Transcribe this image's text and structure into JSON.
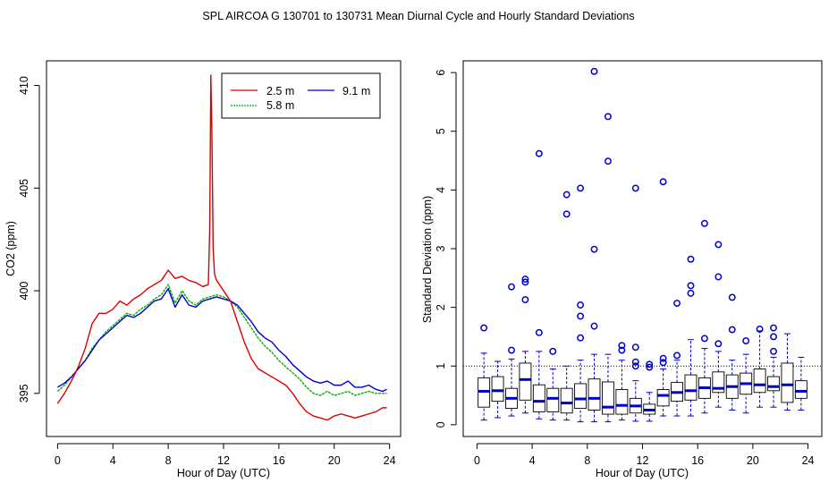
{
  "title": "SPL   AIRCOA G   130701 to 130731   Mean Diurnal Cycle and Hourly Standard Deviations",
  "colors": {
    "s25": "#dd0000",
    "s58": "#00b000",
    "s91": "#0000cc",
    "box": "#0000cc",
    "ref": "#000000"
  },
  "chart_data": [
    {
      "type": "line",
      "xlabel": "Hour of Day (UTC)",
      "ylabel": "CO2 (ppm)",
      "xlim": [
        -0.8,
        24.8
      ],
      "ylim": [
        392.9,
        411.2
      ],
      "xticks": [
        0,
        4,
        8,
        12,
        16,
        20,
        24
      ],
      "yticks": [
        395,
        400,
        405,
        410
      ],
      "xtick_labels": [
        "0",
        "4",
        "8",
        "12",
        "16",
        "20",
        "24"
      ],
      "ytick_labels": [
        "395",
        "400",
        "405",
        "410"
      ],
      "legend": {
        "position": "top-right",
        "entries": [
          "2.5 m",
          "9.1 m",
          "5.8 m"
        ]
      },
      "series": [
        {
          "name": "2.5 m",
          "color": "#dd0000",
          "x": [
            0,
            0.5,
            1,
            1.5,
            2,
            2.5,
            3,
            3.5,
            4,
            4.5,
            5,
            5.5,
            6,
            6.5,
            7,
            7.5,
            8,
            8.5,
            9,
            9.5,
            10,
            10.5,
            10.9,
            11.0,
            11.08,
            11.15,
            11.25,
            11.35,
            11.5,
            12,
            12.5,
            13,
            13.5,
            14,
            14.5,
            15,
            15.5,
            16,
            16.5,
            17,
            17.5,
            18,
            18.5,
            19,
            19.5,
            20,
            20.5,
            21,
            21.5,
            22,
            22.5,
            23,
            23.5,
            23.8
          ],
          "y": [
            394.5,
            395.0,
            395.6,
            396.3,
            397.2,
            398.4,
            398.9,
            398.9,
            399.1,
            399.5,
            399.3,
            399.6,
            399.8,
            400.1,
            400.3,
            400.5,
            401.0,
            400.6,
            400.7,
            400.5,
            400.4,
            400.2,
            400.3,
            403.0,
            410.5,
            408.0,
            402.0,
            400.8,
            400.5,
            400.0,
            399.5,
            398.5,
            397.5,
            396.7,
            396.2,
            396.0,
            395.8,
            395.6,
            395.4,
            395.0,
            394.5,
            394.1,
            393.9,
            393.8,
            393.7,
            393.9,
            394.0,
            393.9,
            393.8,
            393.9,
            394.0,
            394.1,
            394.3,
            394.3
          ]
        },
        {
          "name": "5.8 m",
          "color": "#00b000",
          "x": [
            0,
            0.5,
            1,
            1.5,
            2,
            2.5,
            3,
            3.5,
            4,
            4.5,
            5,
            5.5,
            6,
            6.5,
            7,
            7.5,
            8,
            8.5,
            9,
            9.5,
            10,
            10.5,
            11,
            11.5,
            12,
            12.5,
            13,
            13.5,
            14,
            14.5,
            15,
            15.5,
            16,
            16.5,
            17,
            17.5,
            18,
            18.5,
            19,
            19.5,
            20,
            20.5,
            21,
            21.5,
            22,
            22.5,
            23,
            23.5,
            23.8
          ],
          "y": [
            395.1,
            395.4,
            395.8,
            396.2,
            396.6,
            397.2,
            397.6,
            398.0,
            398.3,
            398.6,
            398.9,
            398.8,
            399.1,
            399.3,
            399.6,
            399.8,
            400.3,
            399.4,
            400.0,
            399.5,
            399.3,
            399.6,
            399.7,
            399.8,
            399.7,
            399.5,
            399.2,
            398.7,
            398.2,
            397.7,
            397.3,
            397.0,
            396.6,
            396.3,
            396.0,
            395.7,
            395.3,
            395.0,
            394.9,
            395.1,
            394.9,
            395.0,
            395.1,
            394.9,
            395.0,
            395.1,
            395.0,
            395.0,
            395.0
          ]
        },
        {
          "name": "9.1 m",
          "color": "#0000cc",
          "x": [
            0,
            0.5,
            1,
            1.5,
            2,
            2.5,
            3,
            3.5,
            4,
            4.5,
            5,
            5.5,
            6,
            6.5,
            7,
            7.5,
            8,
            8.5,
            9,
            9.5,
            10,
            10.5,
            11,
            11.5,
            12,
            12.5,
            13,
            13.5,
            14,
            14.5,
            15,
            15.5,
            16,
            16.5,
            17,
            17.5,
            18,
            18.5,
            19,
            19.5,
            20,
            20.5,
            21,
            21.5,
            22,
            22.5,
            23,
            23.5,
            23.8
          ],
          "y": [
            395.3,
            395.5,
            395.8,
            396.2,
            396.6,
            397.1,
            397.6,
            397.9,
            398.2,
            398.5,
            398.8,
            398.7,
            398.9,
            399.2,
            399.5,
            399.6,
            400.1,
            399.2,
            399.8,
            399.3,
            399.2,
            399.5,
            399.6,
            399.7,
            399.6,
            399.5,
            399.3,
            398.9,
            398.5,
            398.0,
            397.7,
            397.5,
            397.1,
            396.8,
            396.4,
            396.1,
            395.8,
            395.6,
            395.5,
            395.6,
            395.4,
            395.4,
            395.6,
            395.3,
            395.3,
            395.4,
            395.2,
            395.1,
            395.2
          ]
        }
      ]
    },
    {
      "type": "box",
      "xlabel": "Hour of Day (UTC)",
      "ylabel": "Standard Deviation (ppm)",
      "xlim": [
        -1,
        25
      ],
      "ylim": [
        -0.2,
        6.2
      ],
      "xticks": [
        0,
        4,
        8,
        12,
        16,
        20,
        24
      ],
      "yticks": [
        0,
        1,
        2,
        3,
        4,
        5,
        6
      ],
      "xtick_labels": [
        "0",
        "4",
        "8",
        "12",
        "16",
        "20",
        "24"
      ],
      "ytick_labels": [
        "0",
        "1",
        "2",
        "3",
        "4",
        "5",
        "6"
      ],
      "reference_line": 1.0,
      "boxes": [
        {
          "hour": 0.5,
          "min": 0.08,
          "q1": 0.3,
          "median": 0.57,
          "q3": 0.8,
          "max": 1.22,
          "outliers": [
            1.65
          ]
        },
        {
          "hour": 1.5,
          "min": 0.12,
          "q1": 0.4,
          "median": 0.58,
          "q3": 0.82,
          "max": 1.08,
          "outliers": []
        },
        {
          "hour": 2.5,
          "min": 0.15,
          "q1": 0.28,
          "median": 0.45,
          "q3": 0.62,
          "max": 1.12,
          "outliers": [
            1.27,
            2.35
          ]
        },
        {
          "hour": 3.5,
          "min": 0.2,
          "q1": 0.42,
          "median": 0.77,
          "q3": 1.05,
          "max": 1.25,
          "outliers": [
            2.13,
            2.43,
            2.48
          ]
        },
        {
          "hour": 4.5,
          "min": 0.1,
          "q1": 0.22,
          "median": 0.4,
          "q3": 0.68,
          "max": 1.25,
          "outliers": [
            1.57,
            4.62
          ]
        },
        {
          "hour": 5.5,
          "min": 0.08,
          "q1": 0.22,
          "median": 0.45,
          "q3": 0.62,
          "max": 0.95,
          "outliers": [
            1.25
          ]
        },
        {
          "hour": 6.5,
          "min": 0.08,
          "q1": 0.2,
          "median": 0.37,
          "q3": 0.62,
          "max": 1.0,
          "outliers": [
            3.59,
            3.92
          ]
        },
        {
          "hour": 7.5,
          "min": 0.05,
          "q1": 0.28,
          "median": 0.44,
          "q3": 0.7,
          "max": 1.1,
          "outliers": [
            1.48,
            1.85,
            2.04,
            4.03
          ]
        },
        {
          "hour": 8.5,
          "min": 0.05,
          "q1": 0.25,
          "median": 0.45,
          "q3": 0.78,
          "max": 1.2,
          "outliers": [
            1.68,
            2.99,
            6.02
          ]
        },
        {
          "hour": 9.5,
          "min": 0.05,
          "q1": 0.18,
          "median": 0.3,
          "q3": 0.73,
          "max": 1.2,
          "outliers": [
            4.49,
            5.25
          ]
        },
        {
          "hour": 10.5,
          "min": 0.08,
          "q1": 0.18,
          "median": 0.33,
          "q3": 0.6,
          "max": 1.1,
          "outliers": [
            1.27,
            1.35
          ]
        },
        {
          "hour": 11.5,
          "min": 0.06,
          "q1": 0.2,
          "median": 0.32,
          "q3": 0.45,
          "max": 0.75,
          "outliers": [
            1.0,
            1.07,
            1.32,
            4.03
          ]
        },
        {
          "hour": 12.5,
          "min": 0.06,
          "q1": 0.18,
          "median": 0.25,
          "q3": 0.35,
          "max": 0.55,
          "outliers": [
            0.98,
            1.03
          ]
        },
        {
          "hour": 13.5,
          "min": 0.15,
          "q1": 0.32,
          "median": 0.5,
          "q3": 0.6,
          "max": 0.95,
          "outliers": [
            1.06,
            1.13,
            4.14
          ]
        },
        {
          "hour": 14.5,
          "min": 0.15,
          "q1": 0.4,
          "median": 0.55,
          "q3": 0.72,
          "max": 1.1,
          "outliers": [
            1.18,
            2.07
          ]
        },
        {
          "hour": 15.5,
          "min": 0.15,
          "q1": 0.42,
          "median": 0.58,
          "q3": 0.85,
          "max": 1.45,
          "outliers": [
            2.24,
            2.37,
            2.82
          ]
        },
        {
          "hour": 16.5,
          "min": 0.2,
          "q1": 0.45,
          "median": 0.63,
          "q3": 0.8,
          "max": 1.3,
          "outliers": [
            1.47,
            3.43
          ]
        },
        {
          "hour": 17.5,
          "min": 0.3,
          "q1": 0.55,
          "median": 0.62,
          "q3": 0.9,
          "max": 1.25,
          "outliers": [
            1.38,
            2.52,
            3.07
          ]
        },
        {
          "hour": 18.5,
          "min": 0.25,
          "q1": 0.45,
          "median": 0.65,
          "q3": 0.85,
          "max": 1.1,
          "outliers": [
            1.62,
            2.17
          ]
        },
        {
          "hour": 19.5,
          "min": 0.2,
          "q1": 0.52,
          "median": 0.7,
          "q3": 0.88,
          "max": 1.2,
          "outliers": [
            1.43
          ]
        },
        {
          "hour": 20.5,
          "min": 0.3,
          "q1": 0.55,
          "median": 0.68,
          "q3": 0.95,
          "max": 1.6,
          "outliers": [
            1.63
          ]
        },
        {
          "hour": 21.5,
          "min": 0.3,
          "q1": 0.58,
          "median": 0.65,
          "q3": 0.82,
          "max": 1.15,
          "outliers": [
            1.25,
            1.5,
            1.65
          ]
        },
        {
          "hour": 22.5,
          "min": 0.25,
          "q1": 0.38,
          "median": 0.68,
          "q3": 1.05,
          "max": 1.55,
          "outliers": []
        },
        {
          "hour": 23.5,
          "min": 0.25,
          "q1": 0.45,
          "median": 0.57,
          "q3": 0.75,
          "max": 1.15,
          "outliers": []
        }
      ]
    }
  ]
}
